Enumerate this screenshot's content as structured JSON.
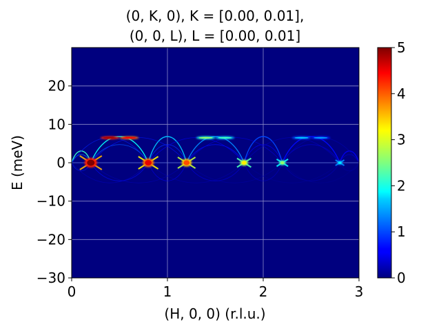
{
  "chart_data": {
    "type": "heatmap",
    "title": {
      "line1": "(0, K, 0), K = [0.00, 0.01],",
      "line2": "(0, 0, L), L = [0.00, 0.01]"
    },
    "xlabel": "(H, 0, 0) (r.l.u.)",
    "ylabel": "E (meV)",
    "xlim": [
      0,
      3
    ],
    "ylim": [
      -30,
      30
    ],
    "x_ticks": [
      0,
      1,
      2,
      3
    ],
    "y_ticks": [
      -30,
      -20,
      -10,
      0,
      10,
      20
    ],
    "grid": true,
    "colormap": "jet",
    "background_color": "#00007f",
    "grid_color": "#8c8cc8",
    "colorbar": {
      "vmin": 0,
      "vmax": 5,
      "ticks": [
        0,
        1,
        2,
        3,
        4,
        5
      ]
    },
    "dispersion": {
      "band_top_meV": 7,
      "band_bottom_meV": -7,
      "hotspots": [
        {
          "H": 0.2,
          "E": 0,
          "intensity": 5.0
        },
        {
          "H": 0.8,
          "E": 0,
          "intensity": 4.5
        },
        {
          "H": 1.2,
          "E": 0,
          "intensity": 4.0
        },
        {
          "H": 1.8,
          "E": 0,
          "intensity": 3.2
        },
        {
          "H": 2.2,
          "E": 0,
          "intensity": 2.6
        },
        {
          "H": 2.8,
          "E": 0,
          "intensity": 1.8
        }
      ],
      "peak_band_points": [
        {
          "H": 0.4,
          "E": 6.5,
          "intensity": 4.2
        },
        {
          "H": 0.6,
          "E": 6.5,
          "intensity": 3.8
        },
        {
          "H": 1.4,
          "E": 6.5,
          "intensity": 2.0
        },
        {
          "H": 1.6,
          "E": 6.5,
          "intensity": 1.6
        },
        {
          "H": 2.4,
          "E": 6.5,
          "intensity": 1.0
        },
        {
          "H": 2.6,
          "E": 6.5,
          "intensity": 0.8
        }
      ]
    }
  }
}
